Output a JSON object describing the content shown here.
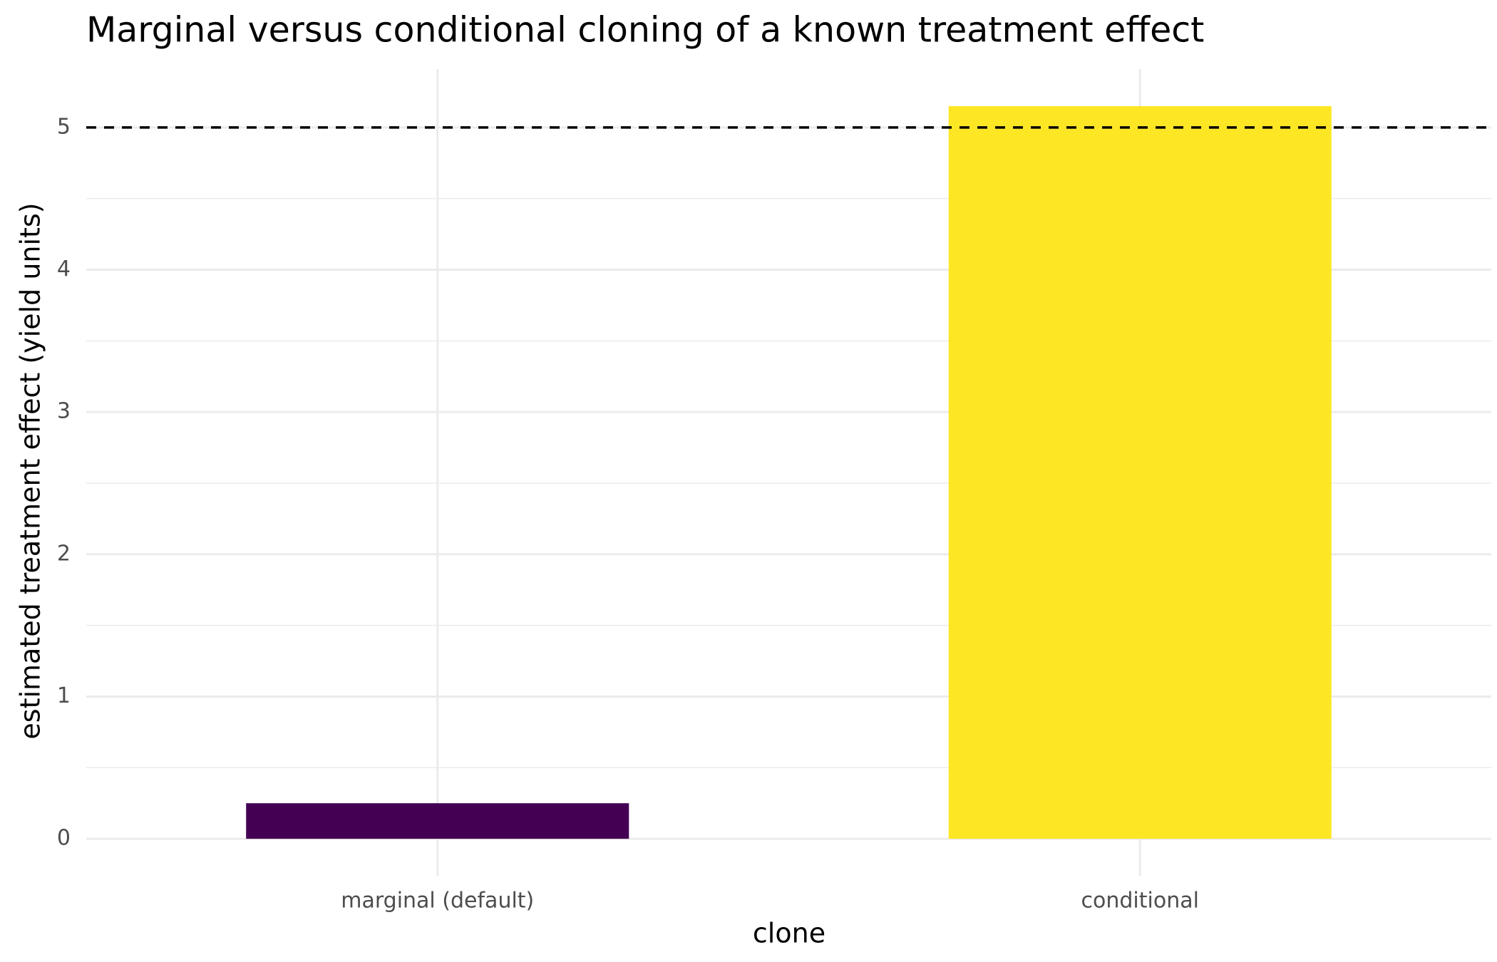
{
  "chart_data": {
    "type": "bar",
    "title": "Marginal versus conditional cloning of a known treatment effect",
    "x_label": "clone",
    "y_label": "estimated treatment effect (yield units)",
    "categories": [
      "marginal (default)",
      "conditional"
    ],
    "values": [
      0.25,
      5.15
    ],
    "colors": [
      "#440154",
      "#fde725"
    ],
    "ylim": [
      -0.26,
      5.41
    ],
    "yticks": [
      0,
      1,
      2,
      3,
      4,
      5
    ],
    "minor_yticks": [
      0.5,
      1.5,
      2.5,
      3.5,
      4.5
    ],
    "reference_line": 5,
    "grid": true
  }
}
